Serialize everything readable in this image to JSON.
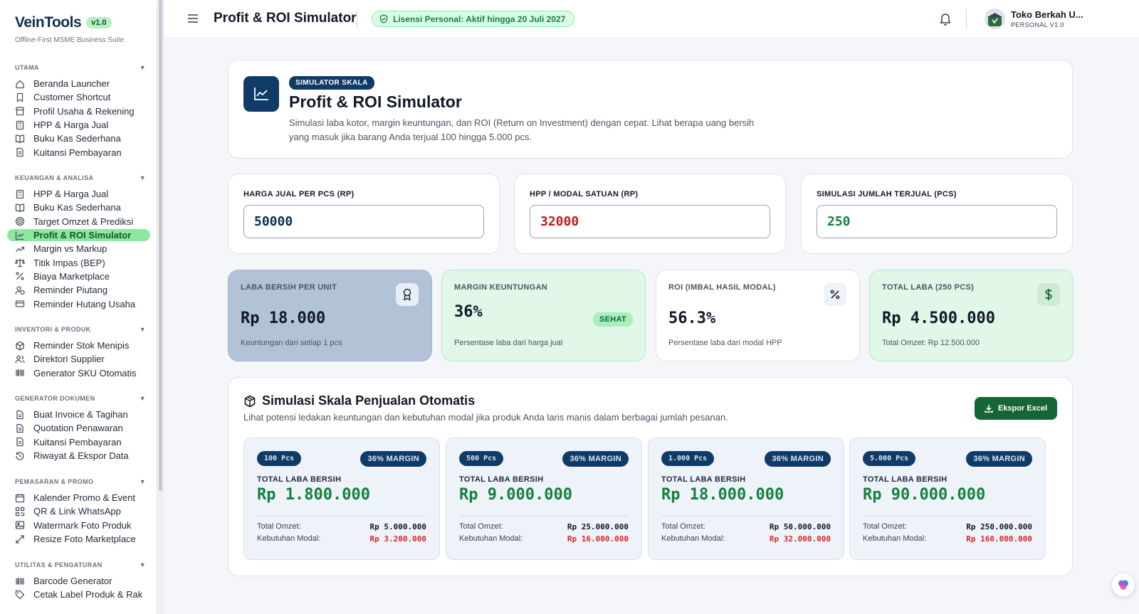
{
  "brand": {
    "name": "VeinTools",
    "version": "v1.0",
    "subtitle": "Offline-First MSME Business Suite"
  },
  "sidebar": {
    "sections": [
      {
        "title": "UTAMA",
        "items": [
          {
            "label": "Beranda Launcher",
            "icon": "home-icon"
          },
          {
            "label": "Customer Shortcut",
            "icon": "bookmark-icon"
          },
          {
            "label": "Profil Usaha & Rekening",
            "icon": "store-icon"
          },
          {
            "label": "HPP & Harga Jual",
            "icon": "calculator-icon"
          },
          {
            "label": "Buku Kas Sederhana",
            "icon": "book-icon"
          },
          {
            "label": "Kuitansi Pembayaran",
            "icon": "receipt-icon"
          }
        ]
      },
      {
        "title": "KEUANGAN & ANALISA",
        "items": [
          {
            "label": "HPP & Harga Jual",
            "icon": "calculator-icon"
          },
          {
            "label": "Buku Kas Sederhana",
            "icon": "book-icon"
          },
          {
            "label": "Target Omzet & Prediksi",
            "icon": "target-icon"
          },
          {
            "label": "Profit & ROI Simulator",
            "icon": "chart-line-icon",
            "active": true
          },
          {
            "label": "Margin vs Markup",
            "icon": "trend-up-icon"
          },
          {
            "label": "Titik Impas (BEP)",
            "icon": "scale-icon"
          },
          {
            "label": "Biaya Marketplace",
            "icon": "percent-icon"
          },
          {
            "label": "Reminder Piutang",
            "icon": "user-clock-icon"
          },
          {
            "label": "Reminder Hutang Usaha",
            "icon": "credit-card-icon"
          }
        ]
      },
      {
        "title": "INVENTORI & PRODUK",
        "items": [
          {
            "label": "Reminder Stok Menipis",
            "icon": "box-icon"
          },
          {
            "label": "Direktori Supplier",
            "icon": "users-icon"
          },
          {
            "label": "Generator SKU Otomatis",
            "icon": "barcode-icon"
          }
        ]
      },
      {
        "title": "GENERATOR DOKUMEN",
        "items": [
          {
            "label": "Buat Invoice & Tagihan",
            "icon": "document-icon"
          },
          {
            "label": "Quotation Penawaran",
            "icon": "document-icon"
          },
          {
            "label": "Kuitansi Pembayaran",
            "icon": "receipt-icon"
          },
          {
            "label": "Riwayat & Ekspor Data",
            "icon": "history-icon"
          }
        ]
      },
      {
        "title": "PEMASARAN & PROMO",
        "items": [
          {
            "label": "Kalender Promo & Event",
            "icon": "calendar-icon"
          },
          {
            "label": "QR & Link WhatsApp",
            "icon": "qr-icon"
          },
          {
            "label": "Watermark Foto Produk",
            "icon": "image-icon"
          },
          {
            "label": "Resize Foto Marketplace",
            "icon": "resize-icon"
          }
        ]
      },
      {
        "title": "UTILITAS & PENGATURAN",
        "items": [
          {
            "label": "Barcode Generator",
            "icon": "barcode-icon"
          },
          {
            "label": "Cetak Label Produk & Rak",
            "icon": "tag-icon"
          }
        ]
      }
    ]
  },
  "header": {
    "title": "Profit & ROI Simulator",
    "license": "Lisensi Personal: Aktif hingga 20 Juli 2027",
    "user_name": "Toko Berkah U...",
    "user_plan": "PERSONAL V1.0"
  },
  "hero": {
    "badge": "SIMULATOR SKALA",
    "title": "Profit & ROI Simulator",
    "description": "Simulasi laba kotor, margin keuntungan, dan ROI (Return on Investment) dengan cepat. Lihat berapa uang bersih yang masuk jika barang Anda terjual 100 hingga 5.000 pcs."
  },
  "inputs": [
    {
      "label": "HARGA JUAL PER PCS (RP)",
      "value": "50000",
      "color": "#0f2e4c"
    },
    {
      "label": "HPP / MODAL SATUAN (RP)",
      "value": "32000",
      "color": "#b91c1c"
    },
    {
      "label": "SIMULASI JUMLAH TERJUAL (PCS)",
      "value": "250",
      "color": "#15803d"
    }
  ],
  "stats": [
    {
      "label": "LABA BERSIH PER UNIT",
      "value": "Rp 18.000",
      "sub": "Keuntungan dari setiap 1 pcs",
      "icon": "award-icon"
    },
    {
      "label": "MARGIN KEUNTUNGAN",
      "value": "36%",
      "badge": "SEHAT",
      "sub": "Persentase laba dari harga jual"
    },
    {
      "label": "ROI (IMBAL HASIL MODAL)",
      "value": "56.3%",
      "sub": "Persentase laba dari modal HPP",
      "icon": "percent-icon"
    },
    {
      "label": "TOTAL LABA (250 PCS)",
      "value": "Rp 4.500.000",
      "sub": "Total Omzet: Rp 12.500.000",
      "icon": "dollar-icon"
    }
  ],
  "scale": {
    "title": "Simulasi Skala Penjualan Otomatis",
    "subtitle": "Lihat potensi ledakan keuntungan dan kebutuhan modal jika produk Anda laris manis dalam berbagai jumlah pesanan.",
    "export_label": "Ekspor Excel",
    "profit_label": "TOTAL LABA BERSIH",
    "omzet_label": "Total Omzet:",
    "modal_label": "Kebutuhan Modal:",
    "tiers": [
      {
        "pcs": "100 Pcs",
        "margin": "36% MARGIN",
        "profit": "Rp 1.800.000",
        "omzet": "Rp 5.000.000",
        "modal": "Rp 3.200.000"
      },
      {
        "pcs": "500 Pcs",
        "margin": "36% MARGIN",
        "profit": "Rp 9.000.000",
        "omzet": "Rp 25.000.000",
        "modal": "Rp 16.000.000"
      },
      {
        "pcs": "1.000 Pcs",
        "margin": "36% MARGIN",
        "profit": "Rp 18.000.000",
        "omzet": "Rp 50.000.000",
        "modal": "Rp 32.000.000"
      },
      {
        "pcs": "5.000 Pcs",
        "margin": "36% MARGIN",
        "profit": "Rp 90.000.000",
        "omzet": "Rp 250.000.000",
        "modal": "Rp 160.000.000"
      }
    ]
  }
}
